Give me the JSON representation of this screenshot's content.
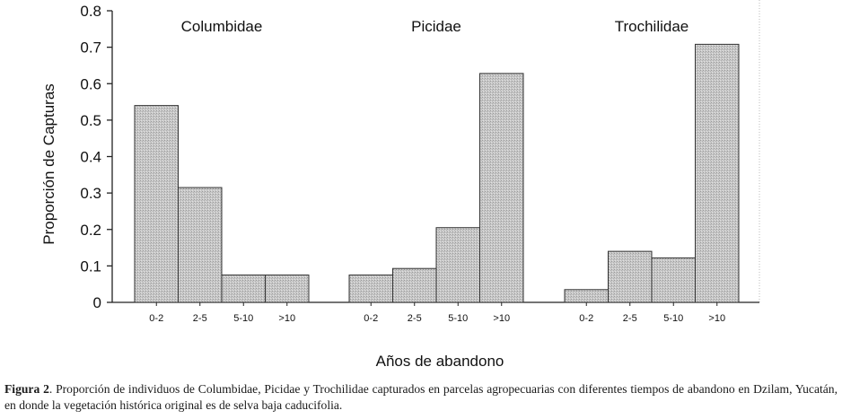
{
  "chart_data": {
    "type": "bar",
    "ylabel": "Proporción de Capturas",
    "xlabel": "Años de abandono",
    "ylim": [
      0,
      0.8
    ],
    "yticks": [
      "0",
      "0.1",
      "0.2",
      "0.3",
      "0.4",
      "0.5",
      "0.6",
      "0.7",
      "0.8"
    ],
    "categories": [
      "0-2",
      "2-5",
      "5-10",
      ">10"
    ],
    "grid": false,
    "groups": [
      {
        "name": "Columbidae",
        "values": [
          0.54,
          0.315,
          0.075,
          0.075
        ]
      },
      {
        "name": "Picidae",
        "values": [
          0.075,
          0.093,
          0.205,
          0.628
        ]
      },
      {
        "name": "Trochilidae",
        "values": [
          0.035,
          0.14,
          0.122,
          0.708
        ]
      }
    ],
    "bar_color": "#c8c8c8",
    "bar_edge_color": "#333333"
  },
  "caption": {
    "label": "Figura 2",
    "text": ". Proporción de individuos de Columbidae, Picidae y Trochilidae capturados en parcelas agropecuarias con diferentes tiempos de abandono en Dzilam, Yucatán, en donde la vegetación histórica original es de selva baja caducifolia."
  }
}
